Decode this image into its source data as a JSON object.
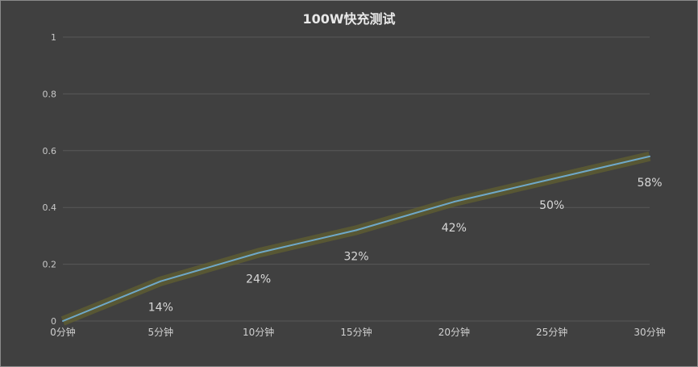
{
  "chart_data": {
    "type": "line",
    "title": "100W快充测试",
    "categories": [
      "0分钟",
      "5分钟",
      "10分钟",
      "15分钟",
      "20分钟",
      "25分钟",
      "30分钟"
    ],
    "values": [
      0,
      0.14,
      0.24,
      0.32,
      0.42,
      0.5,
      0.58
    ],
    "data_labels": [
      "",
      "14%",
      "24%",
      "32%",
      "42%",
      "50%",
      "58%"
    ],
    "yticks": [
      "0",
      "0.2",
      "0.4",
      "0.6",
      "0.8",
      "1"
    ],
    "ylim": [
      0,
      1
    ],
    "grid": true,
    "line_color": "#6fa8c8",
    "glow_color": "#6b6a2a",
    "background": "#404040"
  }
}
